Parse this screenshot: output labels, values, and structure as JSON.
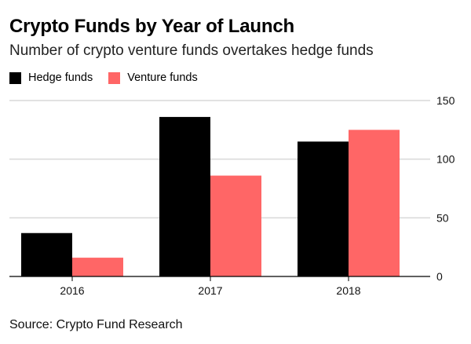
{
  "header": {
    "title": "Crypto Funds by Year of Launch",
    "subtitle": "Number of crypto venture funds overtakes hedge funds"
  },
  "footer": {
    "source": "Source: Crypto Fund Research"
  },
  "colors": {
    "hedge": "#000000",
    "venture": "#ff6666",
    "grid": "#d9d9d9",
    "axis": "#000000"
  },
  "chart_data": {
    "type": "bar",
    "title": "Crypto Funds by Year of Launch",
    "subtitle": "Number of crypto venture funds overtakes hedge funds",
    "categories": [
      "2016",
      "2017",
      "2018"
    ],
    "series": [
      {
        "name": "Hedge funds",
        "values": [
          37,
          136,
          115
        ]
      },
      {
        "name": "Venture funds",
        "values": [
          16,
          86,
          125
        ]
      }
    ],
    "ylim": [
      0,
      150
    ],
    "yticks": [
      0,
      50,
      100,
      150
    ],
    "yaxis_position": "right",
    "grid": true,
    "legend_position": "top-left"
  }
}
